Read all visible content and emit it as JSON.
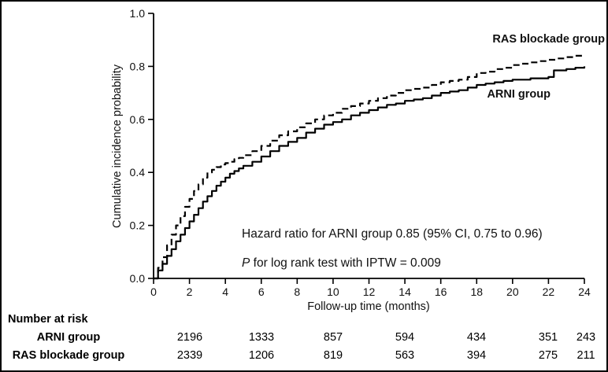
{
  "risk_table": {
    "title": "Number at risk",
    "rows": [
      {
        "label": "ARNI group",
        "values": [
          "2196",
          "1333",
          "857",
          "594",
          "434",
          "351",
          "243"
        ]
      },
      {
        "label": "RAS blockade group",
        "values": [
          "2339",
          "1206",
          "819",
          "563",
          "394",
          "275",
          "211"
        ]
      }
    ]
  },
  "chart_data": {
    "type": "line",
    "title": "",
    "xlabel": "Follow-up time (months)",
    "ylabel": "Cumulative incidence probability",
    "xlim": [
      0,
      24
    ],
    "ylim": [
      0,
      1
    ],
    "grid": false,
    "legend_position": "inline-labels",
    "x_ticks": [
      0,
      2,
      4,
      6,
      8,
      10,
      12,
      14,
      16,
      18,
      20,
      22,
      24
    ],
    "x_tick_labels": [
      "0",
      "2",
      "4",
      "6",
      "8",
      "10",
      "12",
      "14",
      "16",
      "18",
      "20",
      "22",
      "24"
    ],
    "y_ticks": [
      0,
      0.2,
      0.4,
      0.6,
      0.8,
      1.0
    ],
    "y_tick_labels": [
      "0.0",
      "0.2",
      "0.4",
      "0.6",
      "0.8",
      "1.0"
    ],
    "annotations": {
      "hazard_ratio": "Hazard ratio for ARNI group 0.85 (95% CI, 0.75 to 0.96)",
      "p_italic": "P",
      "p_rest": " for log rank test with IPTW = 0.009"
    },
    "series": [
      {
        "id": "ras",
        "name": "RAS blockade group",
        "style": "dashed",
        "x": [
          0,
          0.25,
          0.5,
          0.75,
          1,
          1.25,
          1.5,
          1.75,
          2,
          2.25,
          2.5,
          2.75,
          3,
          3.25,
          3.5,
          3.75,
          4,
          4.25,
          4.5,
          4.75,
          5,
          5.5,
          6,
          6.5,
          7,
          7.5,
          8,
          8.5,
          9,
          9.5,
          10,
          10.5,
          11,
          11.5,
          12,
          12.5,
          13,
          13.5,
          14,
          14.5,
          15,
          15.5,
          16,
          16.5,
          17,
          17.5,
          18,
          18.5,
          19,
          19.5,
          20,
          20.5,
          21,
          21.5,
          22,
          22.5,
          23,
          23.5,
          24
        ],
        "y": [
          0,
          0.04,
          0.08,
          0.125,
          0.165,
          0.2,
          0.235,
          0.27,
          0.3,
          0.33,
          0.355,
          0.38,
          0.4,
          0.41,
          0.42,
          0.43,
          0.435,
          0.44,
          0.45,
          0.455,
          0.465,
          0.48,
          0.5,
          0.52,
          0.54,
          0.555,
          0.57,
          0.585,
          0.6,
          0.615,
          0.625,
          0.64,
          0.65,
          0.66,
          0.67,
          0.68,
          0.69,
          0.7,
          0.71,
          0.715,
          0.72,
          0.73,
          0.74,
          0.745,
          0.75,
          0.76,
          0.775,
          0.78,
          0.79,
          0.795,
          0.805,
          0.81,
          0.815,
          0.82,
          0.825,
          0.83,
          0.835,
          0.84,
          0.845
        ]
      },
      {
        "id": "arni",
        "name": "ARNI group",
        "style": "solid",
        "x": [
          0,
          0.25,
          0.5,
          0.75,
          1,
          1.25,
          1.5,
          1.75,
          2,
          2.25,
          2.5,
          2.75,
          3,
          3.25,
          3.5,
          3.75,
          4,
          4.25,
          4.5,
          4.75,
          5,
          5.5,
          6,
          6.5,
          7,
          7.5,
          8,
          8.5,
          9,
          9.5,
          10,
          10.5,
          11,
          11.5,
          12,
          12.5,
          13,
          13.5,
          14,
          14.5,
          15,
          15.5,
          16,
          16.5,
          17,
          17.5,
          18,
          18.5,
          19,
          19.5,
          20,
          20.5,
          21,
          21.5,
          22,
          22.3,
          23,
          23.5,
          24
        ],
        "y": [
          0,
          0.03,
          0.055,
          0.085,
          0.11,
          0.14,
          0.165,
          0.19,
          0.215,
          0.24,
          0.265,
          0.29,
          0.31,
          0.33,
          0.35,
          0.365,
          0.38,
          0.395,
          0.405,
          0.415,
          0.425,
          0.44,
          0.46,
          0.48,
          0.5,
          0.515,
          0.53,
          0.55,
          0.565,
          0.58,
          0.59,
          0.6,
          0.615,
          0.625,
          0.635,
          0.645,
          0.655,
          0.66,
          0.67,
          0.675,
          0.68,
          0.69,
          0.7,
          0.705,
          0.71,
          0.72,
          0.73,
          0.735,
          0.74,
          0.745,
          0.75,
          0.75,
          0.755,
          0.755,
          0.76,
          0.785,
          0.79,
          0.795,
          0.8
        ]
      }
    ]
  }
}
